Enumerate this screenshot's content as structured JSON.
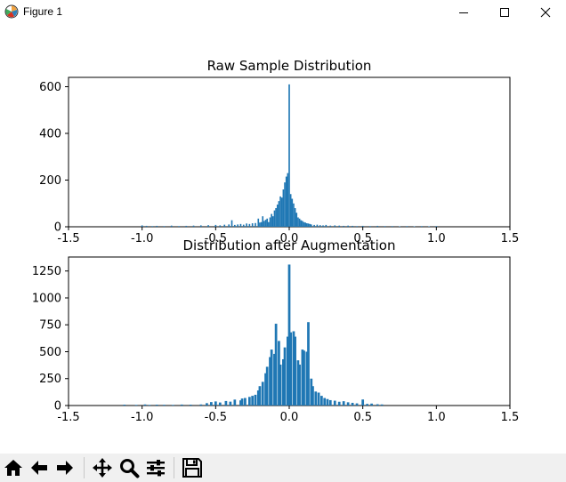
{
  "window": {
    "title": "Figure 1",
    "icons": [
      "matplotlib-icon",
      "minimize-icon",
      "maximize-icon",
      "close-icon"
    ]
  },
  "toolbar": {
    "buttons": [
      "home-icon",
      "back-icon",
      "forward-icon",
      "pan-icon",
      "zoom-icon",
      "configure-subplots-icon",
      "save-icon"
    ]
  },
  "chart_data": [
    {
      "type": "bar",
      "title": "Raw Sample Distribution",
      "xlabel": "",
      "ylabel": "",
      "xlim": [
        -1.5,
        1.5
      ],
      "ylim": [
        0,
        640
      ],
      "xticks": [
        "-1.5",
        "-1.0",
        "-0.5",
        "0.0",
        "0.5",
        "1.0",
        "1.5"
      ],
      "xtick_values": [
        -1.5,
        -1.0,
        -0.5,
        0.0,
        0.5,
        1.0,
        1.5
      ],
      "yticks": [
        "0",
        "200",
        "400",
        "600"
      ],
      "ytick_values": [
        0,
        200,
        400,
        600
      ],
      "color": "#1f77b4",
      "bin_width": 0.01,
      "bars": [
        [
          -1.0,
          6
        ],
        [
          -0.97,
          4
        ],
        [
          -0.93,
          3
        ],
        [
          -0.9,
          4
        ],
        [
          -0.85,
          3
        ],
        [
          -0.8,
          5
        ],
        [
          -0.75,
          3
        ],
        [
          -0.7,
          4
        ],
        [
          -0.65,
          5
        ],
        [
          -0.6,
          6
        ],
        [
          -0.55,
          7
        ],
        [
          -0.5,
          8
        ],
        [
          -0.47,
          6
        ],
        [
          -0.44,
          9
        ],
        [
          -0.41,
          10
        ],
        [
          -0.39,
          28
        ],
        [
          -0.37,
          8
        ],
        [
          -0.35,
          10
        ],
        [
          -0.33,
          12
        ],
        [
          -0.31,
          9
        ],
        [
          -0.29,
          14
        ],
        [
          -0.27,
          12
        ],
        [
          -0.25,
          15
        ],
        [
          -0.23,
          16
        ],
        [
          -0.21,
          35
        ],
        [
          -0.2,
          18
        ],
        [
          -0.19,
          20
        ],
        [
          -0.18,
          45
        ],
        [
          -0.17,
          25
        ],
        [
          -0.16,
          30
        ],
        [
          -0.15,
          35
        ],
        [
          -0.14,
          20
        ],
        [
          -0.13,
          40
        ],
        [
          -0.12,
          55
        ],
        [
          -0.11,
          45
        ],
        [
          -0.1,
          70
        ],
        [
          -0.09,
          80
        ],
        [
          -0.08,
          95
        ],
        [
          -0.07,
          110
        ],
        [
          -0.06,
          130
        ],
        [
          -0.05,
          125
        ],
        [
          -0.04,
          160
        ],
        [
          -0.03,
          190
        ],
        [
          -0.02,
          215
        ],
        [
          -0.01,
          230
        ],
        [
          0.0,
          610
        ],
        [
          0.01,
          140
        ],
        [
          0.02,
          120
        ],
        [
          0.03,
          100
        ],
        [
          0.04,
          80
        ],
        [
          0.05,
          60
        ],
        [
          0.06,
          40
        ],
        [
          0.07,
          35
        ],
        [
          0.08,
          28
        ],
        [
          0.09,
          25
        ],
        [
          0.1,
          20
        ],
        [
          0.11,
          18
        ],
        [
          0.12,
          15
        ],
        [
          0.13,
          14
        ],
        [
          0.14,
          12
        ],
        [
          0.15,
          10
        ],
        [
          0.17,
          8
        ],
        [
          0.19,
          9
        ],
        [
          0.21,
          7
        ],
        [
          0.23,
          6
        ],
        [
          0.25,
          8
        ],
        [
          0.28,
          5
        ],
        [
          0.31,
          6
        ],
        [
          0.34,
          5
        ],
        [
          0.37,
          4
        ],
        [
          0.4,
          5
        ],
        [
          0.43,
          4
        ],
        [
          0.46,
          3
        ],
        [
          0.5,
          4
        ],
        [
          0.55,
          3
        ],
        [
          0.6,
          4
        ],
        [
          0.65,
          3
        ],
        [
          0.7,
          3
        ],
        [
          0.75,
          2
        ],
        [
          0.8,
          3
        ],
        [
          0.85,
          2
        ],
        [
          0.9,
          3
        ],
        [
          0.95,
          2
        ],
        [
          1.0,
          3
        ]
      ]
    },
    {
      "type": "bar",
      "title": "Distribution after Augmentation",
      "xlabel": "",
      "ylabel": "",
      "xlim": [
        -1.5,
        1.5
      ],
      "ylim": [
        0,
        1380
      ],
      "xticks": [
        "-1.5",
        "-1.0",
        "-0.5",
        "0.0",
        "0.5",
        "1.0",
        "1.5"
      ],
      "xtick_values": [
        -1.5,
        -1.0,
        -0.5,
        0.0,
        0.5,
        1.0,
        1.5
      ],
      "yticks": [
        "0",
        "250",
        "500",
        "750",
        "1000",
        "1250"
      ],
      "ytick_values": [
        0,
        250,
        500,
        750,
        1000,
        1250
      ],
      "color": "#1f77b4",
      "bin_width": 0.0165,
      "bars": [
        [
          -1.12,
          8
        ],
        [
          -1.04,
          6
        ],
        [
          -0.98,
          10
        ],
        [
          -0.95,
          6
        ],
        [
          -0.9,
          8
        ],
        [
          -0.85,
          7
        ],
        [
          -0.79,
          6
        ],
        [
          -0.73,
          9
        ],
        [
          -0.67,
          8
        ],
        [
          -0.6,
          10
        ],
        [
          -0.56,
          22
        ],
        [
          -0.53,
          32
        ],
        [
          -0.5,
          38
        ],
        [
          -0.47,
          28
        ],
        [
          -0.43,
          42
        ],
        [
          -0.4,
          36
        ],
        [
          -0.37,
          55
        ],
        [
          -0.33,
          48
        ],
        [
          -0.32,
          65
        ],
        [
          -0.3,
          70
        ],
        [
          -0.27,
          80
        ],
        [
          -0.25,
          90
        ],
        [
          -0.23,
          100
        ],
        [
          -0.21,
          140
        ],
        [
          -0.2,
          180
        ],
        [
          -0.18,
          220
        ],
        [
          -0.16,
          300
        ],
        [
          -0.15,
          360
        ],
        [
          -0.13,
          450
        ],
        [
          -0.12,
          520
        ],
        [
          -0.1,
          480
        ],
        [
          -0.09,
          760
        ],
        [
          -0.07,
          600
        ],
        [
          -0.06,
          380
        ],
        [
          -0.04,
          430
        ],
        [
          -0.03,
          540
        ],
        [
          -0.01,
          640
        ],
        [
          0.0,
          1310
        ],
        [
          0.01,
          680
        ],
        [
          0.03,
          690
        ],
        [
          0.04,
          640
        ],
        [
          0.06,
          420
        ],
        [
          0.07,
          380
        ],
        [
          0.09,
          520
        ],
        [
          0.1,
          510
        ],
        [
          0.12,
          500
        ],
        [
          0.13,
          775
        ],
        [
          0.15,
          250
        ],
        [
          0.16,
          180
        ],
        [
          0.18,
          130
        ],
        [
          0.2,
          120
        ],
        [
          0.22,
          90
        ],
        [
          0.24,
          70
        ],
        [
          0.26,
          60
        ],
        [
          0.28,
          50
        ],
        [
          0.31,
          45
        ],
        [
          0.34,
          35
        ],
        [
          0.37,
          40
        ],
        [
          0.4,
          30
        ],
        [
          0.43,
          25
        ],
        [
          0.46,
          20
        ],
        [
          0.5,
          56
        ],
        [
          0.53,
          15
        ],
        [
          0.56,
          18
        ],
        [
          0.6,
          12
        ],
        [
          0.63,
          10
        ]
      ]
    }
  ]
}
